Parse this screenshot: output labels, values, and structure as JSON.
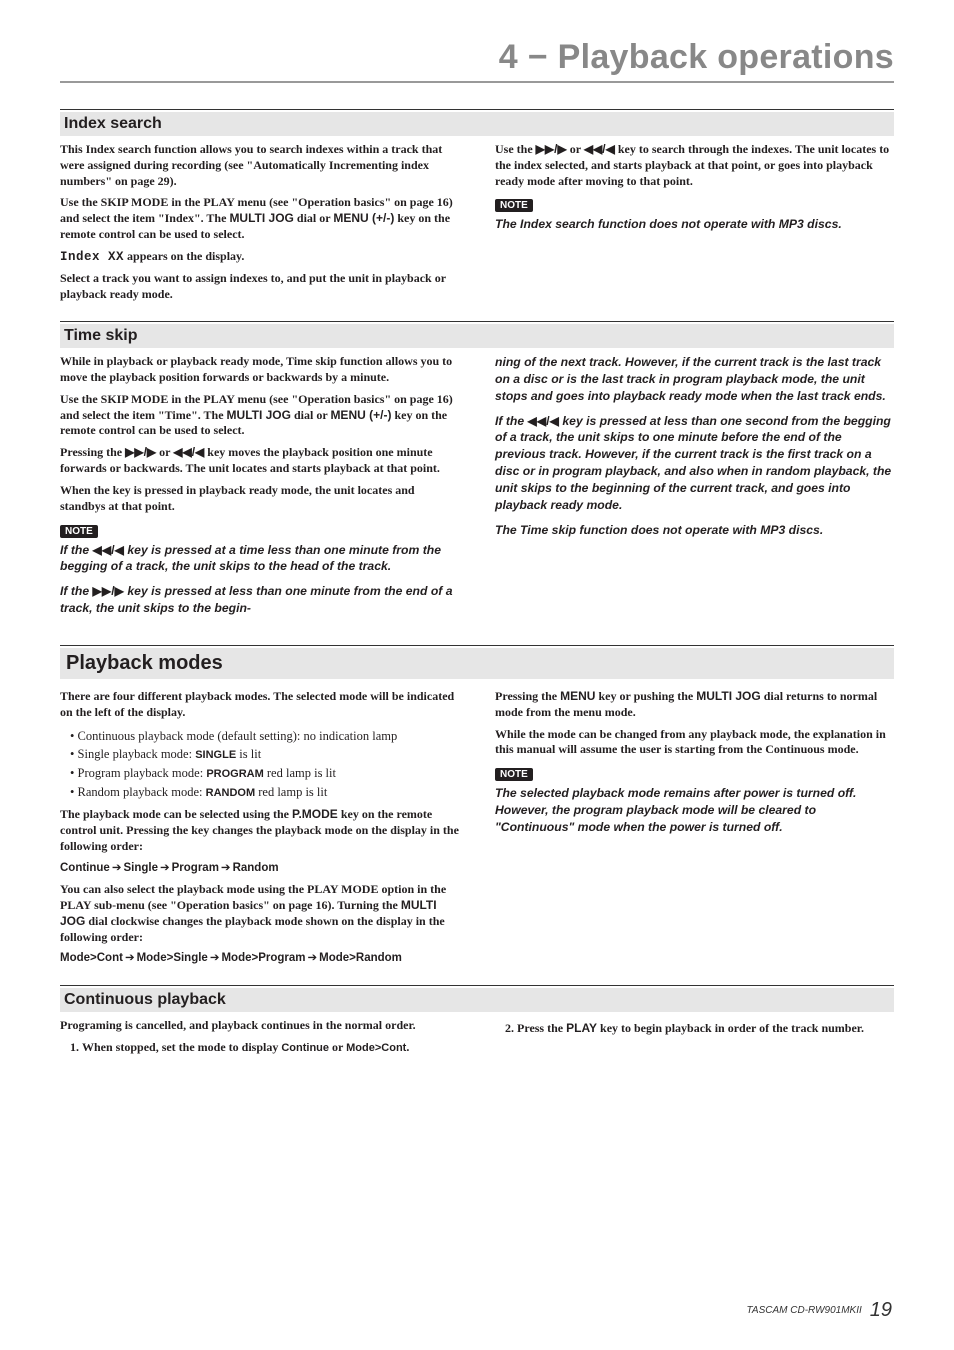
{
  "chapter": {
    "title": "4 − Playback operations"
  },
  "index_search": {
    "heading": "Index search",
    "p1": "This Index search function allows you to search indexes within a track that were assigned during recording (see \"Automatically Incrementing index numbers\" on page 29).",
    "p2a": "Use the SKIP MODE in the PLAY menu (see \"Operation basics\" on page 16) and select the item \"Index\". The ",
    "p2b": "MULTI JOG",
    "p2c": " dial or ",
    "p2d": "MENU (+/-)",
    "p2e": " key on the remote control can be used to select.",
    "p3a": "Index XX",
    "p3b": " appears on the display.",
    "p4": "Select a track you want to assign indexes to, and put the unit in playback or playback ready mode.",
    "r1a": "Use the ",
    "r1b": "▶▶/▶",
    "r1c": " or ",
    "r1d": "◀◀/◀",
    "r1e": " key to search through the indexes. The unit locates to the index selected, and starts playback at that point, or goes into playback ready mode after moving to that point.",
    "note_label": "NOTE",
    "note_text": "The Index search function does not operate with MP3 discs."
  },
  "time_skip": {
    "heading": "Time skip",
    "p1": "While in playback or playback ready mode, Time skip function allows you to move the playback position forwards or backwards by a minute.",
    "p2a": "Use the SKIP MODE in the PLAY menu (see \"Operation basics\" on page 16) and select the item \"Time\". The ",
    "p2b": "MULTI JOG",
    "p2c": " dial or ",
    "p2d": "MENU (+/-)",
    "p2e": " key on the remote control can be used to select.",
    "p3a": "Pressing the ",
    "p3b": "▶▶/▶",
    "p3c": " or ",
    "p3d": "◀◀/◀",
    "p3e": " key moves the playback position one minute forwards or backwards. The unit locates and starts playback at that point.",
    "p4": "When the key is pressed in playback ready mode, the unit locates and standbys at that point.",
    "note_label": "NOTE",
    "n1a": "If the ",
    "n1b": "◀◀/◀",
    "n1c": " key is pressed at a time less than one minute from the begging of a track, the unit skips to the head of the track.",
    "n2a": "If the ",
    "n2b": "▶▶/▶",
    "n2c": " key is pressed at less than one minute from the end of a track, the unit skips to the begin-",
    "r_n1": "ning of the next track. However, if the current track is the last track on a disc or is the last track in program playback mode, the unit stops and goes into playback ready mode when the last track ends.",
    "r_n2a": "If the ",
    "r_n2b": "◀◀/◀",
    "r_n2c": " key is pressed at less than one second from the begging of a track, the unit skips to one minute before the end of the previous track. However, if the current track is the first track on a disc or in program playback, and also when in random playback, the unit skips to the beginning of the current track, and goes into playback ready mode.",
    "r_n3": "The Time skip function does not operate with MP3 discs."
  },
  "playback_modes": {
    "heading": "Playback modes",
    "p1": "There are four different playback modes. The selected  mode will be indicated on the left of the display.",
    "bullets": {
      "b1": "Continuous playback mode (default setting): no indication lamp",
      "b2a": "Single playback mode: ",
      "b2b": "SINGLE",
      "b2c": " is lit",
      "b3a": "Program playback mode: ",
      "b3b": "PROGRAM",
      "b3c": " red lamp is lit",
      "b4a": "Random playback mode: ",
      "b4b": "RANDOM",
      "b4c": " red lamp is lit"
    },
    "p2a": "The playback mode can be selected using the ",
    "p2b": "P.MODE",
    "p2c": " key on the remote control unit. Pressing the key changes the playback mode on the display in the following order:",
    "seq1": {
      "a": "Continue",
      "b": "Single",
      "c": "Program",
      "d": "Random"
    },
    "p3a": "You can also select the playback mode using the PLAY MODE option in the PLAY sub-menu (see \"Operation basics\" on page 16). Turning the ",
    "p3b": "MULTI JOG",
    "p3c": " dial clockwise changes the playback mode shown on the display in the following order:",
    "seq2": {
      "a": "Mode>Cont",
      "b": "Mode>Single",
      "c": "Mode>Program",
      "d": "Mode>Random"
    },
    "r1a": "Pressing the ",
    "r1b": "MENU",
    "r1c": " key or pushing the ",
    "r1d": "MULTI JOG",
    "r1e": " dial returns to normal mode from the menu mode.",
    "r2": "While the mode can be changed from any playback mode, the explanation in this manual will assume the user is starting from the Continuous mode.",
    "note_label": "NOTE",
    "note_text": "The selected playback mode remains after power is turned off. However, the program playback mode will be cleared to \"Continuous\" mode when the power is turned off."
  },
  "continuous": {
    "heading": "Continuous playback",
    "p1": "Programing is cancelled, and playback continues in the normal order.",
    "step1a": "When stopped, set the mode to display ",
    "step1b": "Continue",
    "step1c": " or ",
    "step1d": "Mode>Cont",
    "step1e": ".",
    "step2a": "Press the ",
    "step2b": "PLAY",
    "step2c": " key to begin playback in order of the track number."
  },
  "footer": {
    "model": "TASCAM  CD-RW901MKII",
    "page": "19"
  }
}
